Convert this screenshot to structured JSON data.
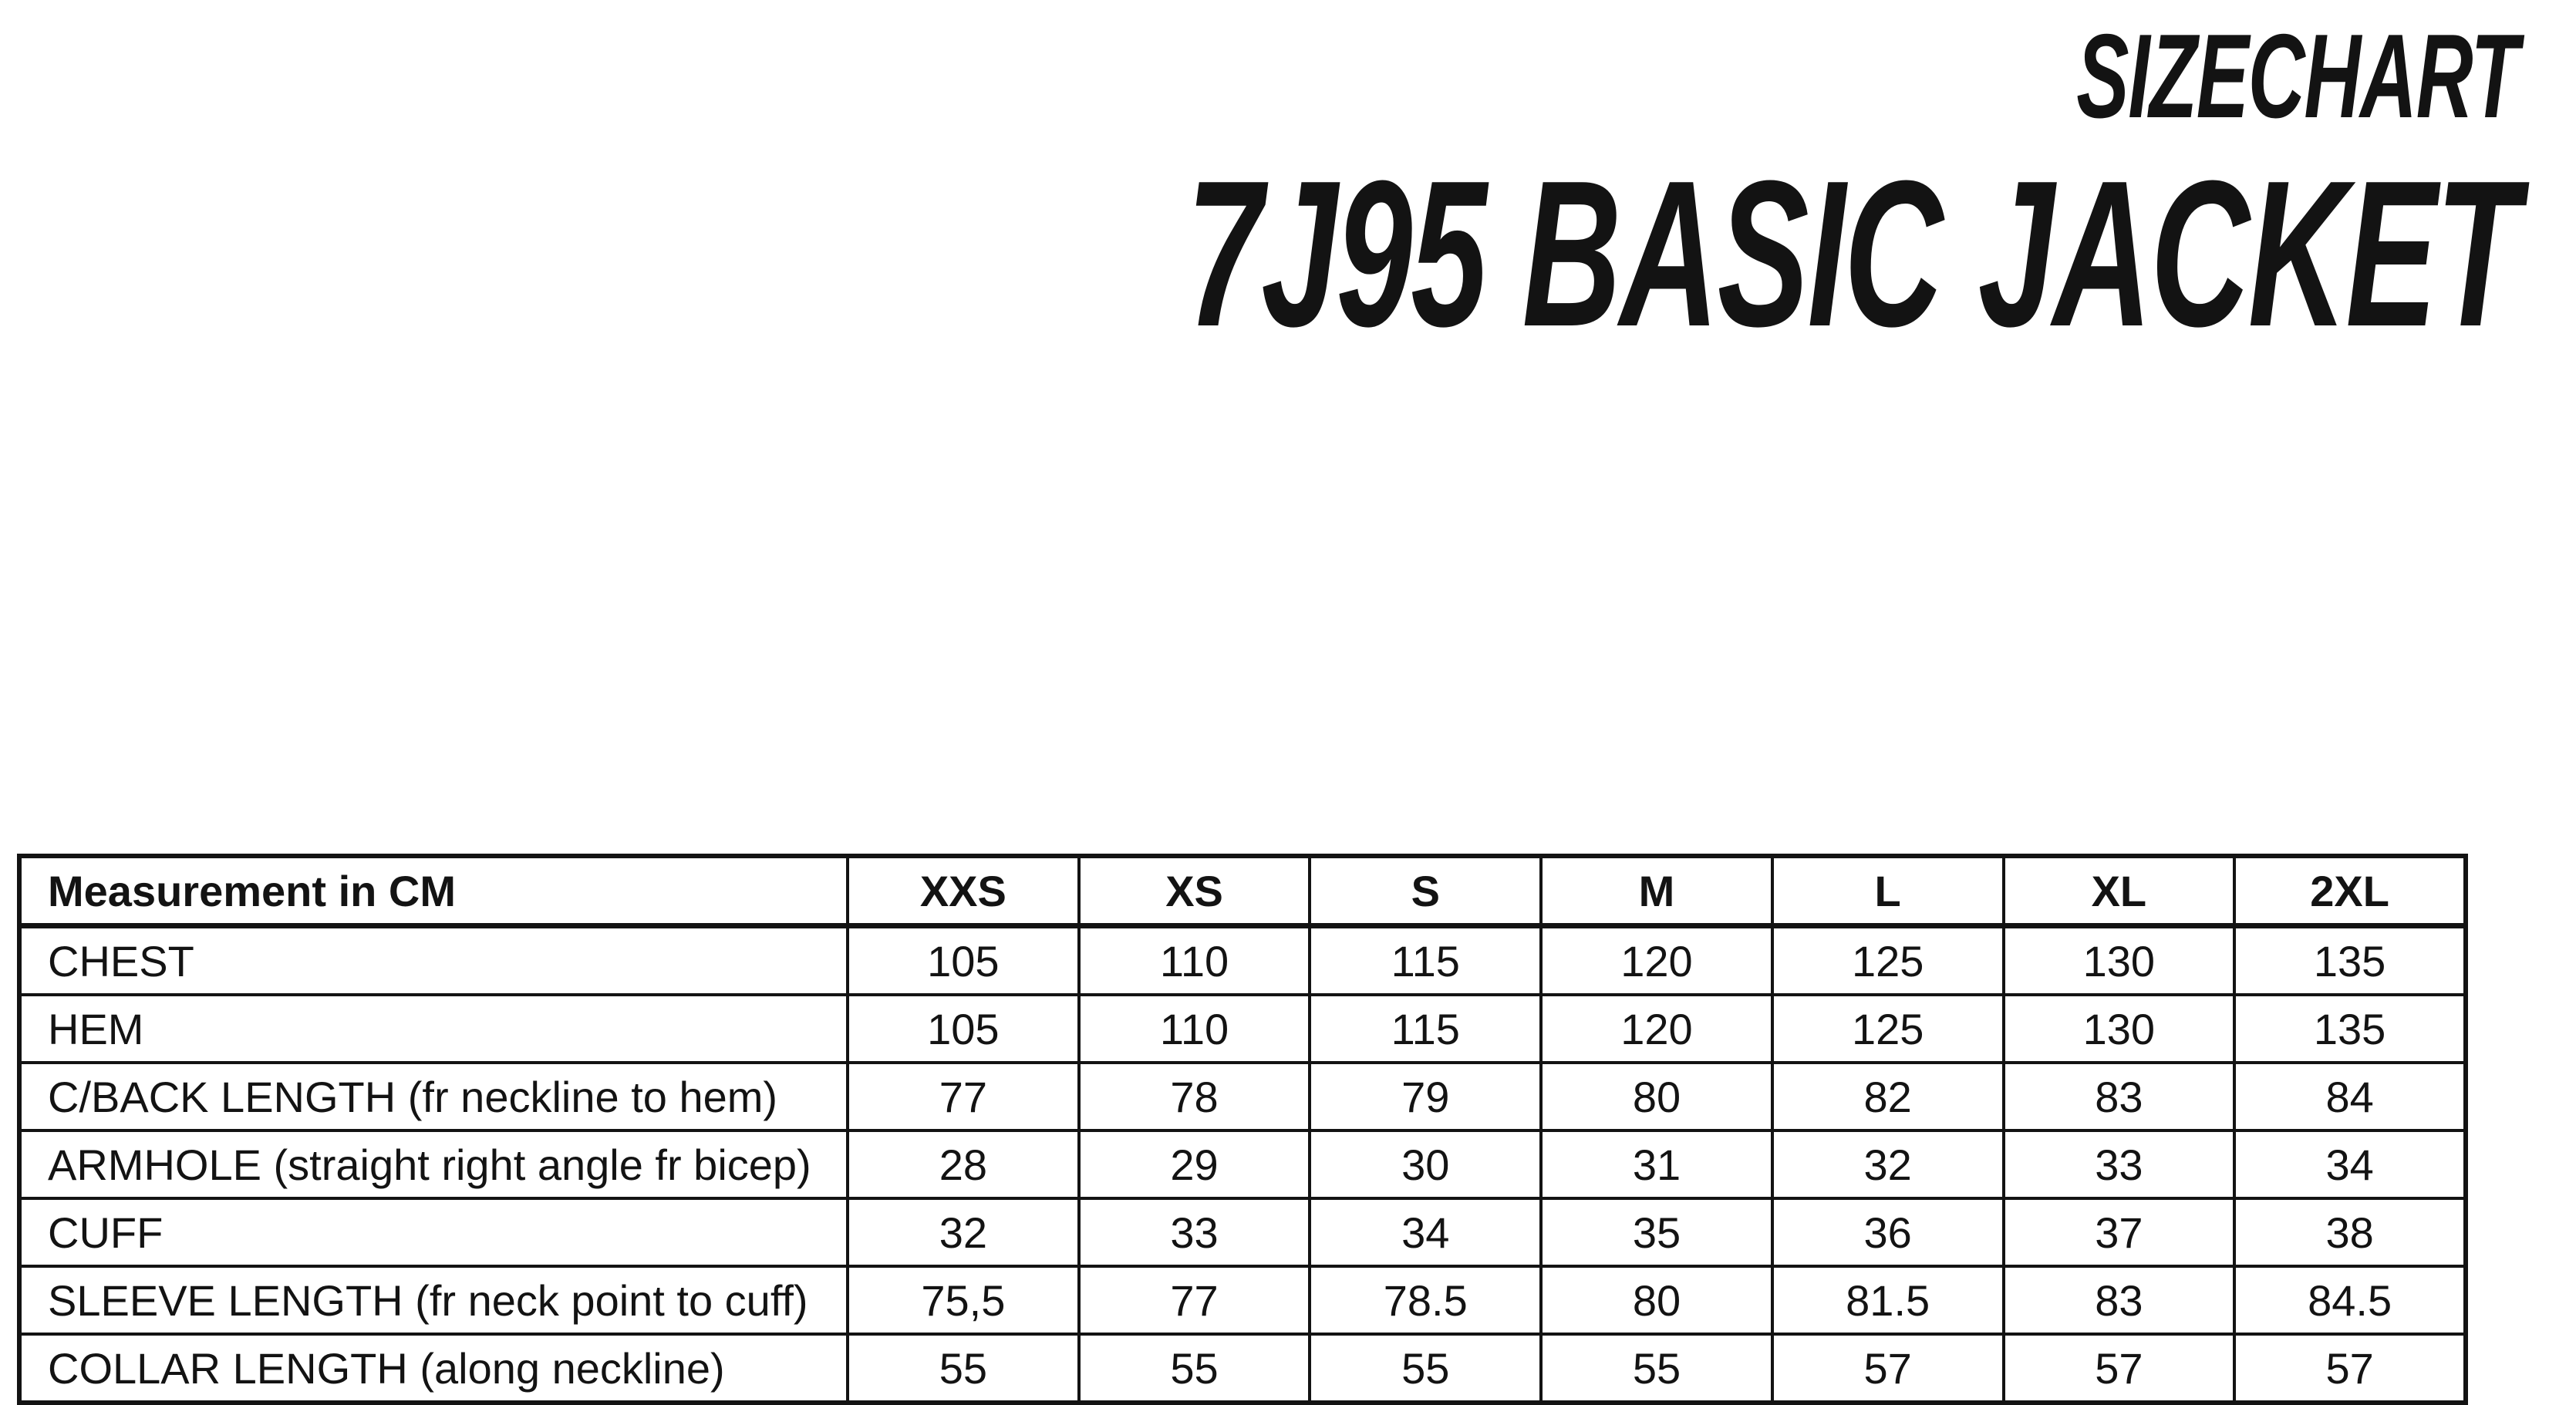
{
  "header": {
    "doc_label": "SIZECHART",
    "product_title": "7J95 BASIC JACKET"
  },
  "table": {
    "columns": [
      "Measurement in CM",
      "XXS",
      "XS",
      "S",
      "M",
      "L",
      "XL",
      "2XL"
    ],
    "rows": [
      {
        "label": "CHEST",
        "values": [
          "105",
          "110",
          "115",
          "120",
          "125",
          "130",
          "135"
        ]
      },
      {
        "label": "HEM",
        "values": [
          "105",
          "110",
          "115",
          "120",
          "125",
          "130",
          "135"
        ]
      },
      {
        "label": "C/BACK LENGTH (fr neckline to hem)",
        "values": [
          "77",
          "78",
          "79",
          "80",
          "82",
          "83",
          "84"
        ]
      },
      {
        "label": "ARMHOLE (straight right angle fr bicep)",
        "values": [
          "28",
          "29",
          "30",
          "31",
          "32",
          "33",
          "34"
        ]
      },
      {
        "label": "CUFF",
        "values": [
          "32",
          "33",
          "34",
          "35",
          "36",
          "37",
          "38"
        ]
      },
      {
        "label": "SLEEVE LENGTH (fr neck point to cuff)",
        "values": [
          "75,5",
          "77",
          "78.5",
          "80",
          "81.5",
          "83",
          "84.5"
        ]
      },
      {
        "label": "COLLAR LENGTH (along neckline)",
        "values": [
          "55",
          "55",
          "55",
          "55",
          "57",
          "57",
          "57"
        ]
      }
    ]
  },
  "colors": {
    "text": "#131313",
    "border": "#131313",
    "background": "#ffffff"
  }
}
